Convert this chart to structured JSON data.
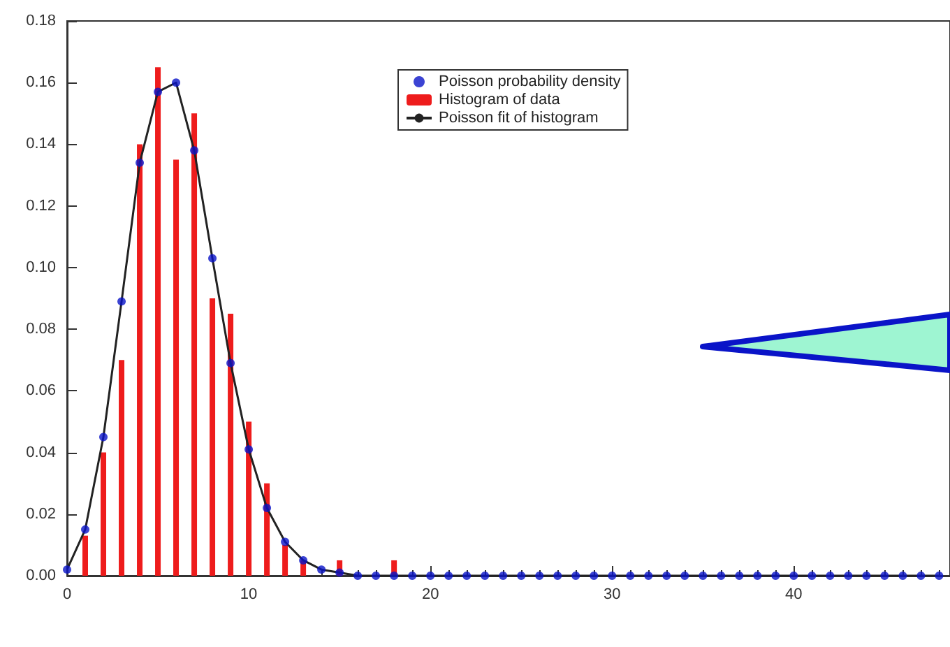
{
  "chart_data": {
    "type": "bar",
    "xlim": [
      0,
      48.6
    ],
    "xticks": [
      0,
      10,
      20,
      30,
      40
    ],
    "ylim": [
      0,
      0.18
    ],
    "yticks": [
      {
        "value": 0,
        "label": "0.00"
      },
      {
        "value": 0.02,
        "label": "0.02"
      },
      {
        "value": 0.04,
        "label": "0.04"
      },
      {
        "value": 0.06,
        "label": "0.06"
      },
      {
        "value": 0.08,
        "label": "0.08"
      },
      {
        "value": 0.1,
        "label": "0.10"
      },
      {
        "value": 0.12,
        "label": "0.12"
      },
      {
        "value": 0.14,
        "label": "0.14"
      },
      {
        "value": 0.16,
        "label": "0.16"
      },
      {
        "value": 0.18,
        "label": "0.18"
      }
    ],
    "grid": false,
    "legend": "top",
    "series": [
      {
        "name": "Poisson probability density",
        "type": "scatter",
        "marker": "circle",
        "color": "#0a14c8",
        "x": [
          0,
          1,
          2,
          3,
          4,
          5,
          6,
          7,
          8,
          9,
          10,
          11,
          12,
          13,
          14,
          15,
          16,
          17,
          18,
          19,
          20,
          21,
          22,
          23,
          24,
          25,
          26,
          27,
          28,
          29,
          30,
          31,
          32,
          33,
          34,
          35,
          36,
          37,
          38,
          39,
          40,
          41,
          42,
          43,
          44,
          45,
          46,
          47,
          48
        ],
        "values": [
          0.002,
          0.015,
          0.045,
          0.089,
          0.134,
          0.157,
          0.16,
          0.138,
          0.103,
          0.069,
          0.041,
          0.022,
          0.011,
          0.005,
          0.002,
          0.001,
          0,
          0,
          0,
          0,
          0,
          0,
          0,
          0,
          0,
          0,
          0,
          0,
          0,
          0,
          0,
          0,
          0,
          0,
          0,
          0,
          0,
          0,
          0,
          0,
          0,
          0,
          0,
          0,
          0,
          0,
          0,
          0,
          0
        ]
      },
      {
        "name": "Histogram of data",
        "color": "#ee1c1c",
        "x": [
          1,
          2,
          3,
          4,
          5,
          6,
          7,
          8,
          9,
          10,
          11,
          12,
          13,
          15,
          18
        ],
        "values": [
          0.013,
          0.04,
          0.07,
          0.14,
          0.165,
          0.135,
          0.15,
          0.09,
          0.085,
          0.05,
          0.03,
          0.01,
          0.005,
          0.005,
          0.005
        ]
      },
      {
        "name": "Poisson fit of histogram",
        "type": "line",
        "marker": "none",
        "color": "#222222",
        "x": [
          0,
          1,
          2,
          3,
          4,
          5,
          6,
          7,
          8,
          9,
          10,
          11,
          12,
          13,
          14,
          15,
          16,
          17,
          18,
          20,
          30,
          40,
          48
        ],
        "values": [
          0.002,
          0.015,
          0.045,
          0.089,
          0.134,
          0.157,
          0.16,
          0.138,
          0.103,
          0.069,
          0.041,
          0.022,
          0.011,
          0.005,
          0.002,
          0.001,
          0,
          0,
          0,
          0,
          0,
          0,
          0
        ]
      }
    ]
  }
}
